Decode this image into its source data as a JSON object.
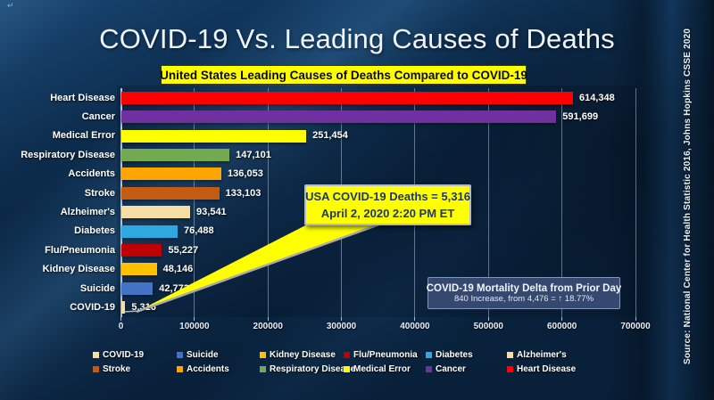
{
  "slide": {
    "title": "COVID-19 Vs. Leading Causes of Deaths",
    "subtitle": "United States Leading Causes of Deaths Compared to COVID-19",
    "source_vertical": "Source: National Center for Health Statistic 2016, Johns Hopkins CSSE 2020",
    "corner_mark": "↵"
  },
  "callout": {
    "line1": "USA COVID-19 Deaths = 5,316",
    "line2": "April 2, 2020 2:20 PM ET"
  },
  "delta_box": {
    "line1": "COVID-19 Mortality Delta from Prior Day",
    "line2": "840 Increase, from 4,476 = ↑ 18.77%"
  },
  "chart_data": {
    "type": "bar",
    "orientation": "horizontal",
    "title": "United States Leading Causes of Deaths Compared to COVID-19",
    "xlabel": "",
    "ylabel": "",
    "xlim": [
      0,
      700000
    ],
    "x_ticks": [
      0,
      100000,
      200000,
      300000,
      400000,
      500000,
      600000,
      700000
    ],
    "grid": true,
    "categories": [
      "Heart Disease",
      "Cancer",
      "Medical Error",
      "Respiratory Disease",
      "Accidents",
      "Stroke",
      "Alzheimer's",
      "Diabetes",
      "Flu/Pneumonia",
      "Kidney Disease",
      "Suicide",
      "COVID-19"
    ],
    "values": [
      614348,
      591699,
      251454,
      147101,
      136053,
      133103,
      93541,
      76488,
      55227,
      48146,
      42773,
      5316
    ],
    "value_labels": [
      "614,348",
      "591,699",
      "251,454",
      "147,101",
      "136,053",
      "133,103",
      "93,541",
      "76,488",
      "55,227",
      "48,146",
      "42,773",
      "5,316"
    ],
    "bar_colors": [
      "#FE0000",
      "#7030A0",
      "#FFFF00",
      "#73A950",
      "#FFA500",
      "#C55A11",
      "#F5DFA6",
      "#2EA9E0",
      "#C00000",
      "#FFC000",
      "#4472C4",
      "#F5DFA6"
    ],
    "legend_position": "bottom",
    "legend_rows": [
      [
        {
          "label": "COVID-19",
          "color": "#F5DFA6"
        },
        {
          "label": "Suicide",
          "color": "#4472C4"
        },
        {
          "label": "Kidney Disease",
          "color": "#FFC000"
        },
        {
          "label": "Flu/Pneumonia",
          "color": "#C00000"
        },
        {
          "label": "Diabetes",
          "color": "#2EA9E0"
        },
        {
          "label": "Alzheimer's",
          "color": "#F5DFA6"
        }
      ],
      [
        {
          "label": "Stroke",
          "color": "#C55A11"
        },
        {
          "label": "Accidents",
          "color": "#FFA500"
        },
        {
          "label": "Respiratory Disease",
          "color": "#73A950"
        },
        {
          "label": "Medical Error",
          "color": "#FFFF00"
        },
        {
          "label": "Cancer",
          "color": "#7030A0"
        },
        {
          "label": "Heart Disease",
          "color": "#FE0000"
        }
      ]
    ],
    "colors": {
      "background_accent": "#0D2A47",
      "callout_yellow": "#FFFF00",
      "callout_text_navy": "#1F3864",
      "delta_box_blue": "#3A4C74",
      "grid_line": "#BED4E8"
    }
  }
}
